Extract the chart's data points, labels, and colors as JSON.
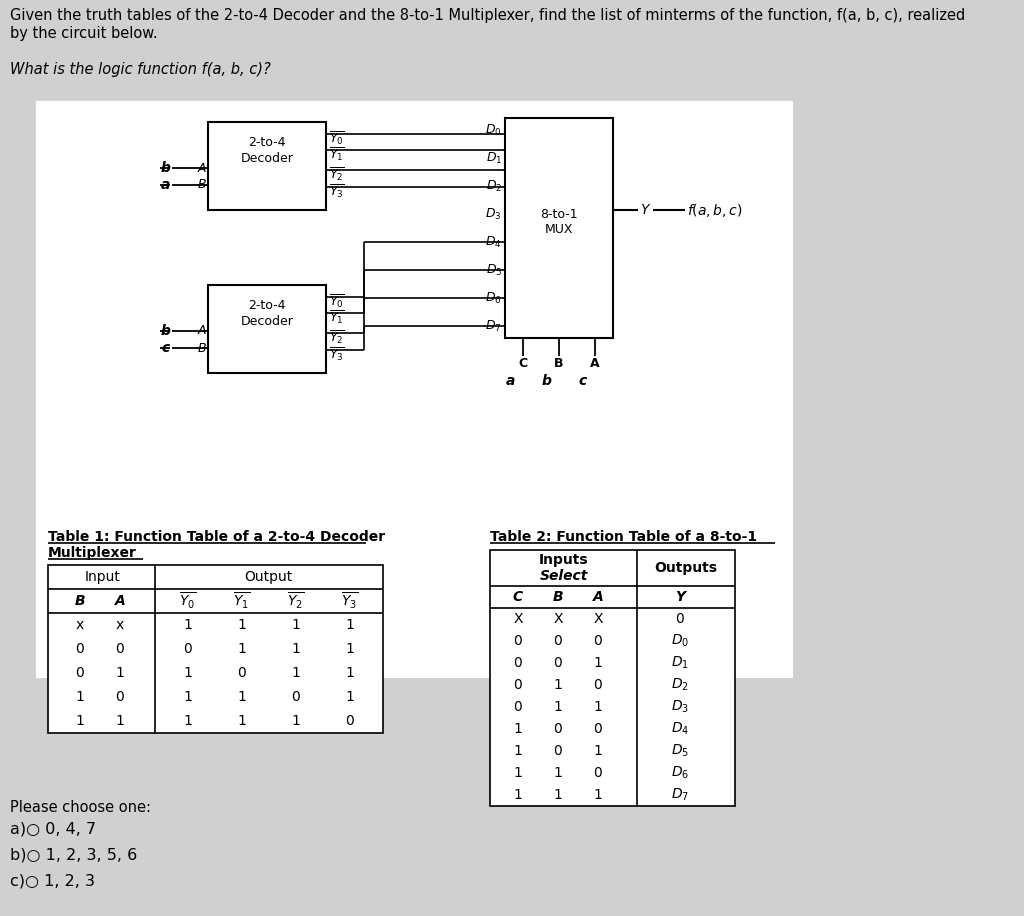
{
  "bg_color": "#d0d0d0",
  "header_line1": "Given the truth tables of the 2-to-4 Decoder and the 8-to-1 Multiplexer, find the list of minterms of the function, f(a, b, c), realized",
  "header_line2": "by the circuit below.",
  "question_text": "What is the logic function f(a, b, c)?",
  "table1_title_line1": "Table 1: Function Table of a 2-to-4 Decoder",
  "table1_title_line2": "Multiplexer",
  "table2_title": "Table 2: Function Table of a 8-to-1",
  "table1_data": [
    [
      "x",
      "x",
      "1",
      "1",
      "1",
      "1"
    ],
    [
      "0",
      "0",
      "0",
      "1",
      "1",
      "1"
    ],
    [
      "0",
      "1",
      "1",
      "0",
      "1",
      "1"
    ],
    [
      "1",
      "0",
      "1",
      "1",
      "0",
      "1"
    ],
    [
      "1",
      "1",
      "1",
      "1",
      "1",
      "0"
    ]
  ],
  "table2_data": [
    [
      "X",
      "X",
      "X",
      "0"
    ],
    [
      "0",
      "0",
      "0",
      "D0"
    ],
    [
      "0",
      "0",
      "1",
      "D1"
    ],
    [
      "0",
      "1",
      "0",
      "D2"
    ],
    [
      "0",
      "1",
      "1",
      "D3"
    ],
    [
      "1",
      "0",
      "0",
      "D4"
    ],
    [
      "1",
      "0",
      "1",
      "D5"
    ],
    [
      "1",
      "1",
      "0",
      "D6"
    ],
    [
      "1",
      "1",
      "1",
      "D7"
    ]
  ],
  "please_choose": "Please choose one:",
  "choices": [
    "a)○ 0, 4, 7",
    "b)○ 1, 2, 3, 5, 6",
    "c)○ 1, 2, 3"
  ]
}
